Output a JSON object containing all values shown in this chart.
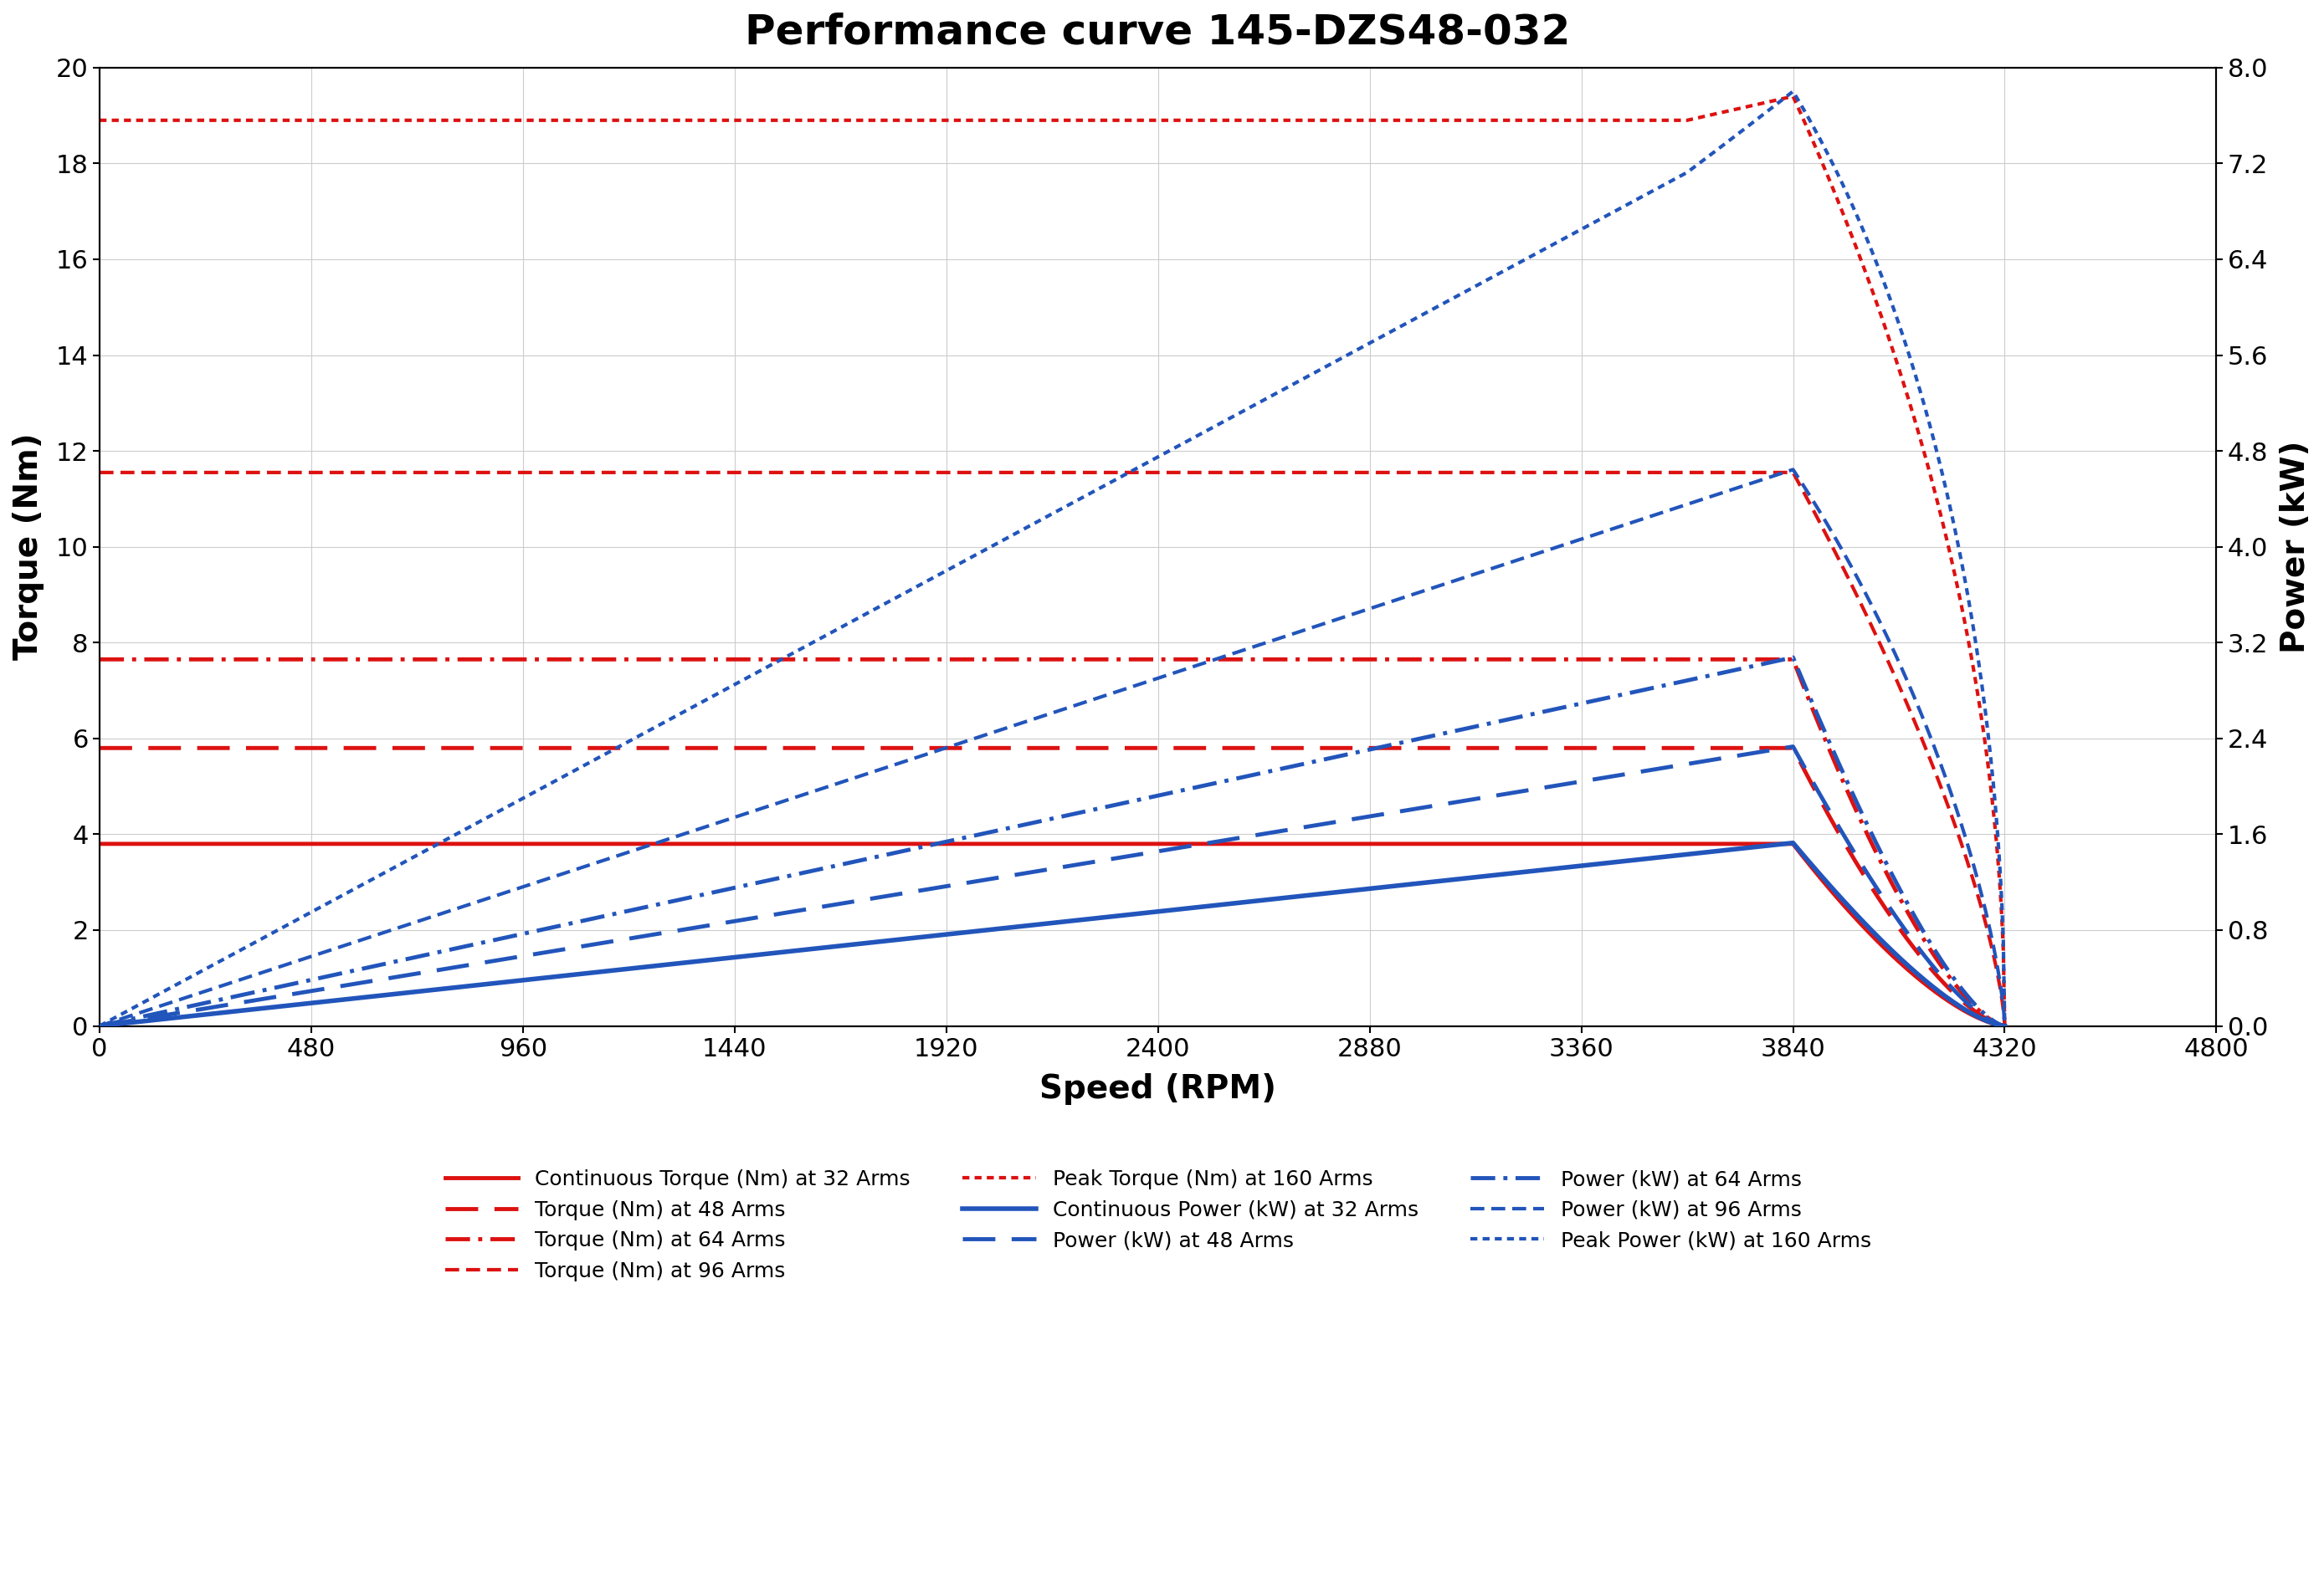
{
  "title": "Performance curve 145-DZS48-032",
  "xlabel": "Speed (RPM)",
  "ylabel_left": "Torque (Nm)",
  "ylabel_right": "Power (kW)",
  "xlim": [
    0,
    4800
  ],
  "ylim_torque": [
    0,
    20
  ],
  "ylim_power": [
    0,
    8
  ],
  "xticks": [
    0,
    480,
    960,
    1440,
    1920,
    2400,
    2880,
    3360,
    3840,
    4320,
    4800
  ],
  "yticks_torque": [
    0,
    2,
    4,
    6,
    8,
    10,
    12,
    14,
    16,
    18,
    20
  ],
  "yticks_power": [
    0,
    0.8,
    1.6,
    2.4,
    3.2,
    4.0,
    4.8,
    5.6,
    6.4,
    7.2,
    8.0
  ],
  "cont_torque_32": 3.8,
  "cont_torque_48": 5.8,
  "cont_torque_64": 7.65,
  "cont_torque_96": 11.55,
  "peak_torque_160_flat": 18.9,
  "peak_torque_160_peak": 19.4,
  "base_speed_cont": 3840,
  "base_speed_peak": 3840,
  "max_speed_cont": 4320,
  "max_speed_peak": 4320,
  "background_color": "#ffffff",
  "grid_color": "#cccccc",
  "red_color": "#dd1111",
  "blue_color": "#2255bb",
  "title_fontsize": 36,
  "axis_label_fontsize": 28,
  "tick_fontsize": 22,
  "legend_fontsize": 18
}
